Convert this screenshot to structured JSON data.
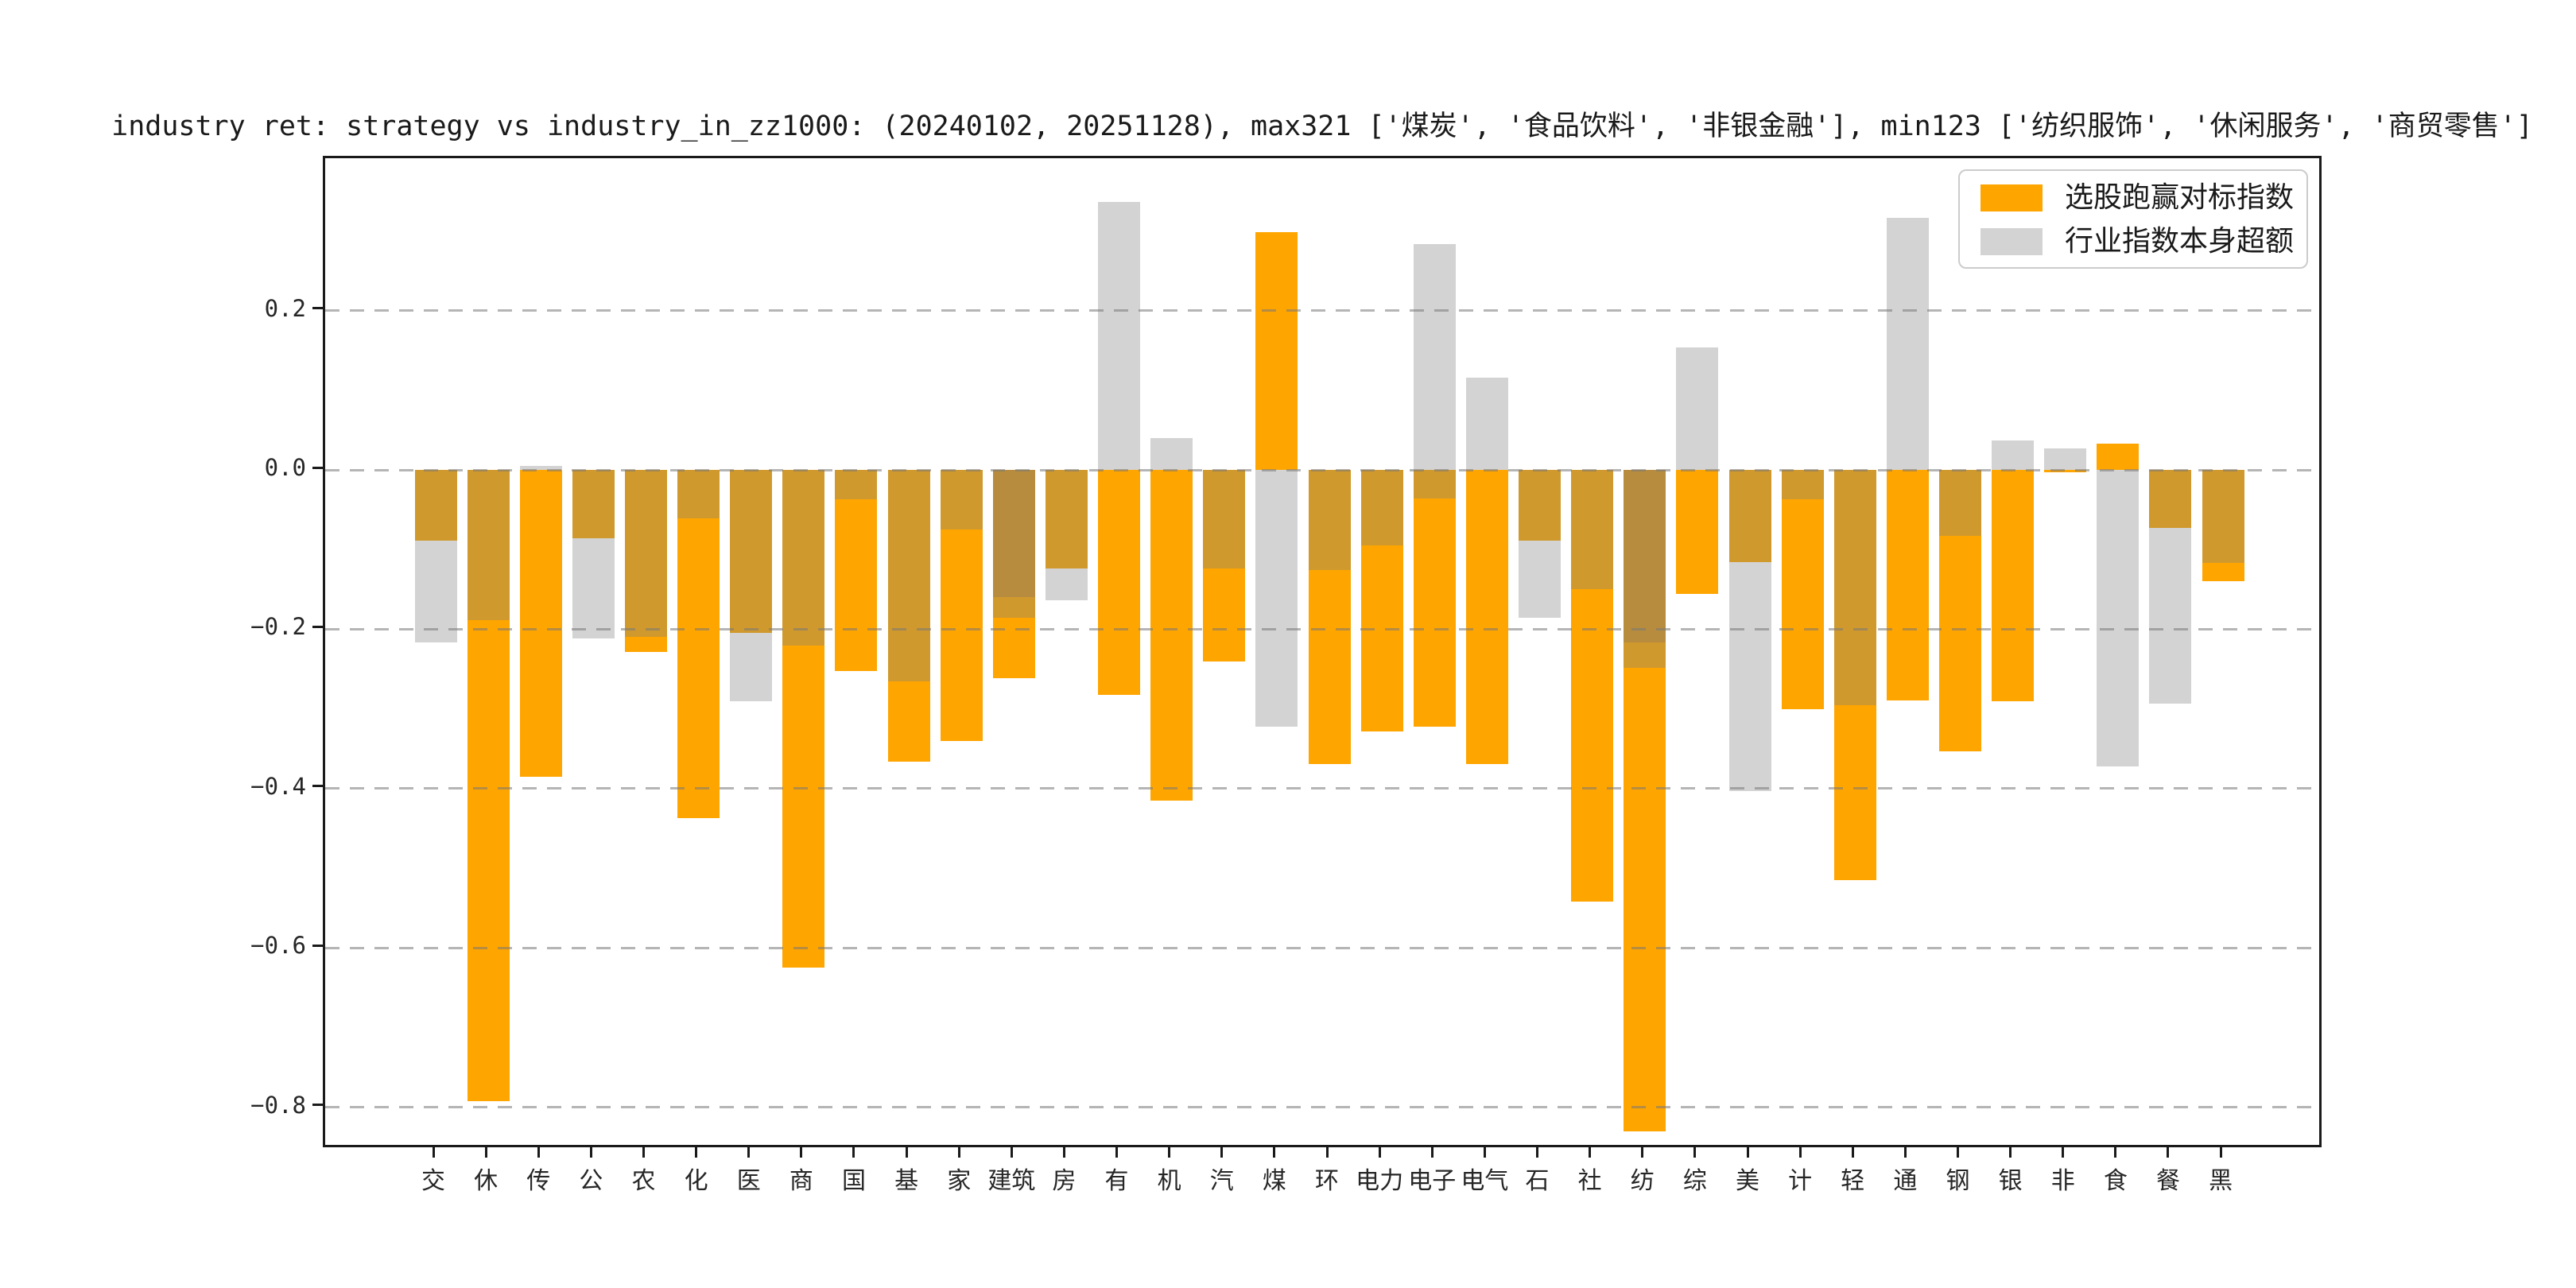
{
  "title": "industry ret: strategy vs industry_in_zz1000: (20240102, 20251128), max321 ['煤炭', '食品饮料', '非银金融'], min123 ['纺织服饰', '休闲服务', '商贸零售']",
  "legend": [
    {
      "label": "选股跑赢对标指数",
      "color": "#FFA500"
    },
    {
      "label": "行业指数本身超额",
      "color": "#D3D3D3"
    }
  ],
  "colors": {
    "orange": "#FFA500",
    "gray": "#D3D3D3",
    "tan": "#D0992D",
    "khaki": "#B78C3E",
    "grid": "#787878",
    "axis": "#1a1a1a",
    "text": "#262626",
    "legend_border": "#cccccc",
    "background": "#FFFFFF"
  },
  "chart_data": {
    "type": "bar",
    "title": "industry ret: strategy vs industry_in_zz1000: (20240102, 20251128), max321 ['煤炭', '食品饮料', '非银金融'], min123 ['纺织服饰', '休闲服务', '商贸零售']",
    "xlabel": "",
    "ylabel": "",
    "grid": "horizontal dashed",
    "legend_position": "upper right",
    "ylim": [
      -0.853,
      0.391
    ],
    "yticks": [
      0.2,
      0.0,
      -0.2,
      -0.4,
      -0.6,
      -0.8
    ],
    "categories": [
      "交",
      "休",
      "传",
      "公",
      "农",
      "化",
      "医",
      "商",
      "国",
      "基",
      "家",
      "建筑",
      "房",
      "有",
      "机",
      "汽",
      "煤",
      "环",
      "电力",
      "电子",
      "电气",
      "石",
      "社",
      "纺",
      "综",
      "美",
      "计",
      "轻",
      "通",
      "钢",
      "银",
      "非",
      "食",
      "餐",
      "黑"
    ],
    "series": [
      {
        "name": "选股跑赢对标指数",
        "values": [
          -0.089,
          -0.792,
          -0.385,
          -0.086,
          -0.229,
          -0.437,
          -0.205,
          -0.625,
          -0.253,
          -0.366,
          -0.34,
          -0.261,
          -0.124,
          -0.282,
          -0.415,
          -0.241,
          0.298,
          -0.369,
          -0.328,
          -0.322,
          -0.369,
          -0.089,
          -0.542,
          -0.83,
          -0.156,
          -0.116,
          -0.3,
          -0.515,
          -0.289,
          -0.353,
          -0.29,
          -0.003,
          0.033,
          -0.073,
          -0.14
        ]
      },
      {
        "name": "行业指数本身超额",
        "values": [
          -0.217,
          -0.189,
          0.005,
          -0.212,
          -0.21,
          -0.061,
          -0.29,
          -0.221,
          -0.037,
          -0.265,
          -0.075,
          -0.16,
          -0.164,
          0.336,
          0.04,
          -0.124,
          -0.322,
          -0.126,
          -0.095,
          0.283,
          0.116,
          -0.186,
          -0.15,
          -0.217,
          0.154,
          -0.403,
          -0.037,
          -0.295,
          0.316,
          -0.083,
          0.037,
          0.027,
          -0.372,
          -0.293,
          -0.117
        ]
      }
    ],
    "bars": [
      {
        "label": "交",
        "segments": [
          [
            0,
            -0.089,
            "tan"
          ],
          [
            -0.089,
            -0.217,
            "gray"
          ]
        ]
      },
      {
        "label": "休",
        "segments": [
          [
            0,
            -0.189,
            "tan"
          ],
          [
            -0.189,
            -0.792,
            "orange"
          ]
        ]
      },
      {
        "label": "传",
        "segments": [
          [
            0.005,
            0,
            "gray"
          ],
          [
            0,
            -0.385,
            "orange"
          ]
        ]
      },
      {
        "label": "公",
        "segments": [
          [
            0,
            -0.086,
            "tan"
          ],
          [
            -0.086,
            -0.212,
            "gray"
          ]
        ]
      },
      {
        "label": "农",
        "segments": [
          [
            0,
            -0.21,
            "tan"
          ],
          [
            -0.21,
            -0.229,
            "orange"
          ]
        ]
      },
      {
        "label": "化",
        "segments": [
          [
            0,
            -0.061,
            "tan"
          ],
          [
            -0.061,
            -0.437,
            "orange"
          ]
        ]
      },
      {
        "label": "医",
        "segments": [
          [
            0,
            -0.205,
            "tan"
          ],
          [
            -0.205,
            -0.29,
            "gray"
          ]
        ]
      },
      {
        "label": "商",
        "segments": [
          [
            0,
            -0.221,
            "tan"
          ],
          [
            -0.221,
            -0.625,
            "orange"
          ]
        ]
      },
      {
        "label": "国",
        "segments": [
          [
            0,
            -0.037,
            "tan"
          ],
          [
            -0.037,
            -0.253,
            "orange"
          ]
        ]
      },
      {
        "label": "基",
        "segments": [
          [
            0,
            -0.265,
            "tan"
          ],
          [
            -0.265,
            -0.366,
            "orange"
          ]
        ]
      },
      {
        "label": "家",
        "segments": [
          [
            0,
            -0.075,
            "tan"
          ],
          [
            -0.075,
            -0.34,
            "orange"
          ]
        ]
      },
      {
        "label": "建筑",
        "segments": [
          [
            0,
            -0.16,
            "khaki"
          ],
          [
            -0.16,
            -0.186,
            "tan"
          ],
          [
            -0.186,
            -0.261,
            "orange"
          ]
        ]
      },
      {
        "label": "房",
        "segments": [
          [
            0,
            -0.124,
            "tan"
          ],
          [
            -0.124,
            -0.164,
            "gray"
          ]
        ]
      },
      {
        "label": "有",
        "segments": [
          [
            0.336,
            0,
            "gray"
          ],
          [
            0,
            -0.282,
            "orange"
          ]
        ]
      },
      {
        "label": "机",
        "segments": [
          [
            0.04,
            0,
            "gray"
          ],
          [
            0,
            -0.415,
            "orange"
          ]
        ]
      },
      {
        "label": "汽",
        "segments": [
          [
            0,
            -0.124,
            "tan"
          ],
          [
            -0.124,
            -0.241,
            "orange"
          ]
        ]
      },
      {
        "label": "煤",
        "segments": [
          [
            0.298,
            0,
            "orange"
          ],
          [
            0,
            -0.322,
            "gray"
          ]
        ]
      },
      {
        "label": "环",
        "segments": [
          [
            0,
            -0.126,
            "tan"
          ],
          [
            -0.126,
            -0.369,
            "orange"
          ]
        ]
      },
      {
        "label": "电力",
        "segments": [
          [
            0,
            -0.095,
            "tan"
          ],
          [
            -0.095,
            -0.328,
            "orange"
          ]
        ]
      },
      {
        "label": "电子",
        "segments": [
          [
            0.283,
            0,
            "gray"
          ],
          [
            0,
            -0.036,
            "tan"
          ],
          [
            -0.036,
            -0.322,
            "orange"
          ]
        ]
      },
      {
        "label": "电气",
        "segments": [
          [
            0.116,
            0,
            "gray"
          ],
          [
            0,
            -0.369,
            "orange"
          ]
        ]
      },
      {
        "label": "石",
        "segments": [
          [
            0,
            -0.089,
            "tan"
          ],
          [
            -0.089,
            -0.186,
            "gray"
          ]
        ]
      },
      {
        "label": "社",
        "segments": [
          [
            0,
            -0.15,
            "tan"
          ],
          [
            -0.15,
            -0.542,
            "orange"
          ]
        ]
      },
      {
        "label": "纺",
        "segments": [
          [
            0,
            -0.217,
            "khaki"
          ],
          [
            -0.217,
            -0.249,
            "tan"
          ],
          [
            -0.249,
            -0.83,
            "orange"
          ]
        ]
      },
      {
        "label": "综",
        "segments": [
          [
            0.154,
            0,
            "gray"
          ],
          [
            0,
            -0.156,
            "orange"
          ]
        ]
      },
      {
        "label": "美",
        "segments": [
          [
            0,
            -0.116,
            "tan"
          ],
          [
            -0.116,
            -0.403,
            "gray"
          ]
        ]
      },
      {
        "label": "计",
        "segments": [
          [
            0,
            -0.037,
            "tan"
          ],
          [
            -0.037,
            -0.3,
            "orange"
          ]
        ]
      },
      {
        "label": "轻",
        "segments": [
          [
            0,
            -0.295,
            "tan"
          ],
          [
            -0.295,
            -0.515,
            "orange"
          ]
        ]
      },
      {
        "label": "通",
        "segments": [
          [
            0.316,
            0,
            "gray"
          ],
          [
            0,
            -0.289,
            "orange"
          ]
        ]
      },
      {
        "label": "钢",
        "segments": [
          [
            0,
            -0.083,
            "tan"
          ],
          [
            -0.083,
            -0.353,
            "orange"
          ]
        ]
      },
      {
        "label": "银",
        "segments": [
          [
            0.037,
            0,
            "gray"
          ],
          [
            0,
            -0.29,
            "orange"
          ]
        ]
      },
      {
        "label": "非",
        "segments": [
          [
            0.027,
            0,
            "gray"
          ],
          [
            0,
            -0.003,
            "orange"
          ]
        ]
      },
      {
        "label": "食",
        "segments": [
          [
            0.033,
            0,
            "orange"
          ],
          [
            0,
            -0.372,
            "gray"
          ]
        ]
      },
      {
        "label": "餐",
        "segments": [
          [
            0,
            -0.073,
            "tan"
          ],
          [
            -0.073,
            -0.293,
            "gray"
          ]
        ]
      },
      {
        "label": "黑",
        "segments": [
          [
            0,
            -0.117,
            "tan"
          ],
          [
            -0.117,
            -0.14,
            "orange"
          ]
        ]
      }
    ]
  }
}
